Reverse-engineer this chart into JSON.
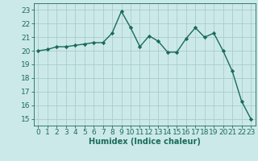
{
  "x": [
    0,
    1,
    2,
    3,
    4,
    5,
    6,
    7,
    8,
    9,
    10,
    11,
    12,
    13,
    14,
    15,
    16,
    17,
    18,
    19,
    20,
    21,
    22,
    23
  ],
  "y": [
    20.0,
    20.1,
    20.3,
    20.3,
    20.4,
    20.5,
    20.6,
    20.6,
    21.3,
    22.9,
    21.7,
    20.3,
    21.1,
    20.7,
    19.9,
    19.9,
    20.9,
    21.7,
    21.0,
    21.3,
    20.0,
    18.5,
    16.3,
    15.0
  ],
  "line_color": "#1a6b5a",
  "marker": "D",
  "marker_size": 2.2,
  "line_width": 1.0,
  "xlabel": "Humidex (Indice chaleur)",
  "xlim": [
    -0.5,
    23.5
  ],
  "ylim": [
    14.5,
    23.5
  ],
  "yticks": [
    15,
    16,
    17,
    18,
    19,
    20,
    21,
    22,
    23
  ],
  "xticks": [
    0,
    1,
    2,
    3,
    4,
    5,
    6,
    7,
    8,
    9,
    10,
    11,
    12,
    13,
    14,
    15,
    16,
    17,
    18,
    19,
    20,
    21,
    22,
    23
  ],
  "bg_color": "#cce9e9",
  "grid_color": "#aacccc",
  "tick_color": "#1a6b5a",
  "label_color": "#1a6b5a",
  "font_size": 6.5,
  "xlabel_fontsize": 7.0
}
